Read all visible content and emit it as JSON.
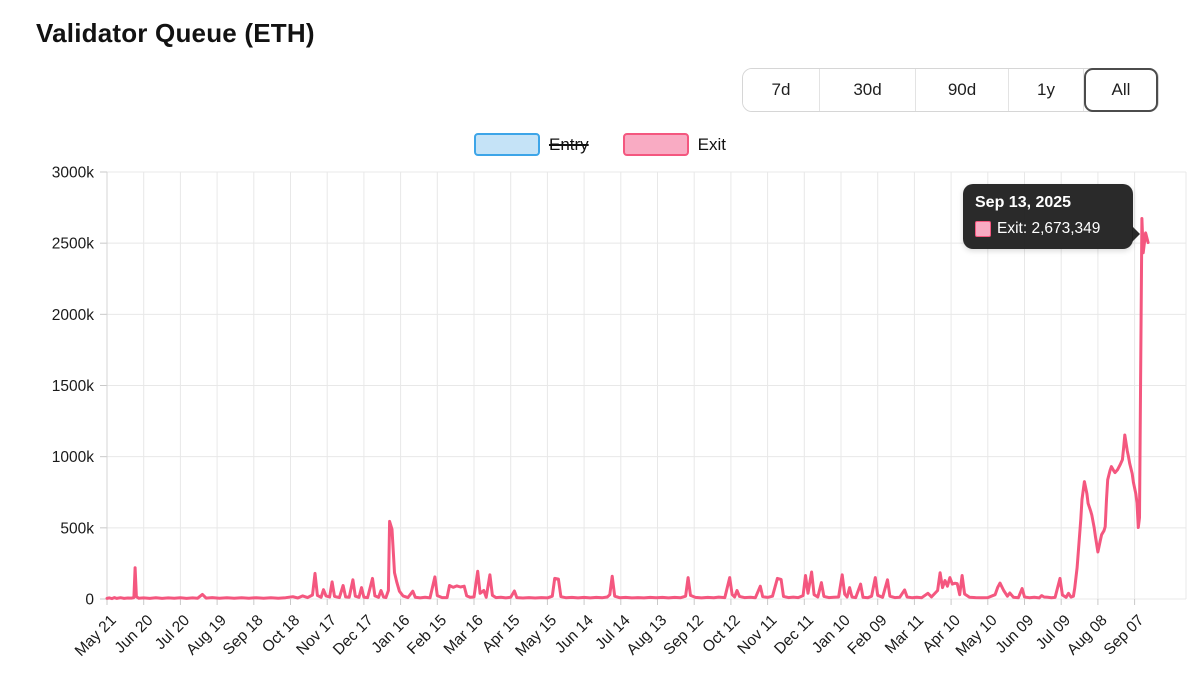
{
  "page": {
    "title": "Validator Queue (ETH)"
  },
  "range_buttons": [
    {
      "label": "7d",
      "active": false
    },
    {
      "label": "30d",
      "active": false
    },
    {
      "label": "90d",
      "active": false
    },
    {
      "label": "1y",
      "active": false
    },
    {
      "label": "All",
      "active": true
    }
  ],
  "legend": {
    "items": [
      {
        "label": "Entry",
        "border": "#3da5e8",
        "fill": "#c5e3f7",
        "disabled": true
      },
      {
        "label": "Exit",
        "border": "#f4577f",
        "fill": "#f9abc3",
        "disabled": false
      }
    ]
  },
  "tooltip": {
    "date": "Sep 13, 2025",
    "text": "Exit: 2,673,349",
    "swatch_fill": "#f9abc3",
    "swatch_border": "#f4577f"
  },
  "colors": {
    "exit_line": "#f4577f",
    "entry_line": "#3da5e8",
    "grid": "#e8e8e8",
    "axis": "#d4d4d4",
    "tick": "#c9c9c9",
    "label": "#1a1a1a"
  },
  "chart_data": {
    "type": "line",
    "title": "Validator Queue (ETH)",
    "xlabel": "",
    "ylabel": "",
    "y_unit": "k",
    "ylim": [
      0,
      3000
    ],
    "xlim_days": [
      0,
      882
    ],
    "grid": true,
    "legend_position": "top-center",
    "y_ticks": [
      {
        "v": 0,
        "label": "0"
      },
      {
        "v": 500,
        "label": "500k"
      },
      {
        "v": 1000,
        "label": "1000k"
      },
      {
        "v": 1500,
        "label": "1500k"
      },
      {
        "v": 2000,
        "label": "2000k"
      },
      {
        "v": 2500,
        "label": "2500k"
      },
      {
        "v": 3000,
        "label": "3000k"
      }
    ],
    "x_ticks": [
      {
        "day": 0,
        "label": "May 21"
      },
      {
        "day": 30,
        "label": "Jun 20"
      },
      {
        "day": 60,
        "label": "Jul 20"
      },
      {
        "day": 90,
        "label": "Aug 19"
      },
      {
        "day": 120,
        "label": "Sep 18"
      },
      {
        "day": 150,
        "label": "Oct 18"
      },
      {
        "day": 180,
        "label": "Nov 17"
      },
      {
        "day": 210,
        "label": "Dec 17"
      },
      {
        "day": 240,
        "label": "Jan 16"
      },
      {
        "day": 270,
        "label": "Feb 15"
      },
      {
        "day": 300,
        "label": "Mar 16"
      },
      {
        "day": 330,
        "label": "Apr 15"
      },
      {
        "day": 360,
        "label": "May 15"
      },
      {
        "day": 390,
        "label": "Jun 14"
      },
      {
        "day": 420,
        "label": "Jul 14"
      },
      {
        "day": 450,
        "label": "Aug 13"
      },
      {
        "day": 480,
        "label": "Sep 12"
      },
      {
        "day": 510,
        "label": "Oct 12"
      },
      {
        "day": 540,
        "label": "Nov 11"
      },
      {
        "day": 570,
        "label": "Dec 11"
      },
      {
        "day": 600,
        "label": "Jan 10"
      },
      {
        "day": 630,
        "label": "Feb 09"
      },
      {
        "day": 660,
        "label": "Mar 11"
      },
      {
        "day": 690,
        "label": "Apr 10"
      },
      {
        "day": 720,
        "label": "May 10"
      },
      {
        "day": 750,
        "label": "Jun 09"
      },
      {
        "day": 780,
        "label": "Jul 09"
      },
      {
        "day": 810,
        "label": "Aug 08"
      },
      {
        "day": 840,
        "label": "Sep 07"
      }
    ],
    "highlight_point": {
      "day": 846,
      "value_k": 2673.349,
      "label": "Sep 13, 2025",
      "series": "Exit"
    },
    "series": [
      {
        "name": "Entry",
        "color": "#3da5e8",
        "hidden": true,
        "points": []
      },
      {
        "name": "Exit",
        "color": "#f4577f",
        "hidden": false,
        "points": [
          [
            0,
            4
          ],
          [
            2,
            8
          ],
          [
            4,
            3
          ],
          [
            6,
            10
          ],
          [
            8,
            4
          ],
          [
            11,
            9
          ],
          [
            14,
            4
          ],
          [
            17,
            7
          ],
          [
            20,
            6
          ],
          [
            22,
            10
          ],
          [
            23,
            220
          ],
          [
            24,
            16
          ],
          [
            26,
            5
          ],
          [
            30,
            8
          ],
          [
            35,
            4
          ],
          [
            40,
            9
          ],
          [
            45,
            4
          ],
          [
            50,
            8
          ],
          [
            55,
            5
          ],
          [
            60,
            9
          ],
          [
            65,
            4
          ],
          [
            70,
            8
          ],
          [
            74,
            5
          ],
          [
            78,
            32
          ],
          [
            81,
            6
          ],
          [
            86,
            10
          ],
          [
            92,
            5
          ],
          [
            98,
            9
          ],
          [
            104,
            5
          ],
          [
            110,
            9
          ],
          [
            116,
            5
          ],
          [
            122,
            9
          ],
          [
            128,
            5
          ],
          [
            134,
            9
          ],
          [
            140,
            5
          ],
          [
            146,
            9
          ],
          [
            152,
            16
          ],
          [
            156,
            7
          ],
          [
            160,
            22
          ],
          [
            164,
            10
          ],
          [
            168,
            28
          ],
          [
            170,
            180
          ],
          [
            172,
            25
          ],
          [
            175,
            12
          ],
          [
            177,
            65
          ],
          [
            179,
            22
          ],
          [
            182,
            14
          ],
          [
            184,
            120
          ],
          [
            186,
            18
          ],
          [
            190,
            10
          ],
          [
            193,
            95
          ],
          [
            195,
            15
          ],
          [
            198,
            12
          ],
          [
            201,
            135
          ],
          [
            203,
            20
          ],
          [
            206,
            12
          ],
          [
            208,
            80
          ],
          [
            210,
            12
          ],
          [
            213,
            10
          ],
          [
            217,
            145
          ],
          [
            219,
            22
          ],
          [
            222,
            12
          ],
          [
            224,
            60
          ],
          [
            226,
            14
          ],
          [
            228,
            10
          ],
          [
            230,
            60
          ],
          [
            231,
            545
          ],
          [
            233,
            490
          ],
          [
            235,
            185
          ],
          [
            237,
            115
          ],
          [
            239,
            55
          ],
          [
            242,
            22
          ],
          [
            246,
            10
          ],
          [
            250,
            55
          ],
          [
            252,
            12
          ],
          [
            256,
            8
          ],
          [
            260,
            12
          ],
          [
            264,
            8
          ],
          [
            268,
            155
          ],
          [
            270,
            24
          ],
          [
            274,
            10
          ],
          [
            278,
            10
          ],
          [
            280,
            95
          ],
          [
            283,
            82
          ],
          [
            286,
            92
          ],
          [
            289,
            84
          ],
          [
            292,
            90
          ],
          [
            294,
            22
          ],
          [
            297,
            12
          ],
          [
            300,
            14
          ],
          [
            303,
            195
          ],
          [
            305,
            40
          ],
          [
            308,
            60
          ],
          [
            310,
            12
          ],
          [
            313,
            170
          ],
          [
            315,
            26
          ],
          [
            318,
            10
          ],
          [
            322,
            12
          ],
          [
            326,
            8
          ],
          [
            330,
            12
          ],
          [
            333,
            56
          ],
          [
            335,
            10
          ],
          [
            340,
            7
          ],
          [
            345,
            10
          ],
          [
            350,
            7
          ],
          [
            355,
            10
          ],
          [
            360,
            8
          ],
          [
            364,
            20
          ],
          [
            366,
            145
          ],
          [
            369,
            140
          ],
          [
            371,
            16
          ],
          [
            375,
            9
          ],
          [
            380,
            11
          ],
          [
            385,
            8
          ],
          [
            390,
            11
          ],
          [
            395,
            8
          ],
          [
            400,
            11
          ],
          [
            405,
            9
          ],
          [
            409,
            14
          ],
          [
            411,
            30
          ],
          [
            413,
            160
          ],
          [
            415,
            20
          ],
          [
            419,
            9
          ],
          [
            424,
            11
          ],
          [
            429,
            8
          ],
          [
            434,
            10
          ],
          [
            439,
            8
          ],
          [
            444,
            11
          ],
          [
            449,
            9
          ],
          [
            454,
            11
          ],
          [
            459,
            8
          ],
          [
            464,
            11
          ],
          [
            469,
            9
          ],
          [
            473,
            20
          ],
          [
            475,
            150
          ],
          [
            477,
            25
          ],
          [
            481,
            11
          ],
          [
            486,
            8
          ],
          [
            491,
            11
          ],
          [
            496,
            9
          ],
          [
            500,
            13
          ],
          [
            505,
            10
          ],
          [
            509,
            150
          ],
          [
            511,
            32
          ],
          [
            513,
            14
          ],
          [
            515,
            60
          ],
          [
            517,
            18
          ],
          [
            521,
            10
          ],
          [
            526,
            12
          ],
          [
            530,
            9
          ],
          [
            534,
            90
          ],
          [
            536,
            16
          ],
          [
            540,
            11
          ],
          [
            544,
            20
          ],
          [
            548,
            145
          ],
          [
            551,
            138
          ],
          [
            553,
            18
          ],
          [
            557,
            10
          ],
          [
            561,
            13
          ],
          [
            565,
            10
          ],
          [
            569,
            24
          ],
          [
            571,
            165
          ],
          [
            573,
            40
          ],
          [
            576,
            190
          ],
          [
            578,
            30
          ],
          [
            581,
            14
          ],
          [
            584,
            115
          ],
          [
            586,
            18
          ],
          [
            590,
            10
          ],
          [
            594,
            12
          ],
          [
            598,
            14
          ],
          [
            601,
            170
          ],
          [
            603,
            34
          ],
          [
            605,
            14
          ],
          [
            607,
            80
          ],
          [
            609,
            14
          ],
          [
            612,
            10
          ],
          [
            616,
            105
          ],
          [
            618,
            12
          ],
          [
            622,
            9
          ],
          [
            625,
            20
          ],
          [
            628,
            150
          ],
          [
            630,
            26
          ],
          [
            634,
            12
          ],
          [
            638,
            135
          ],
          [
            640,
            20
          ],
          [
            644,
            10
          ],
          [
            648,
            12
          ],
          [
            652,
            64
          ],
          [
            654,
            14
          ],
          [
            658,
            9
          ],
          [
            662,
            12
          ],
          [
            666,
            9
          ],
          [
            671,
            40
          ],
          [
            674,
            15
          ],
          [
            679,
            60
          ],
          [
            681,
            185
          ],
          [
            683,
            80
          ],
          [
            685,
            130
          ],
          [
            687,
            90
          ],
          [
            689,
            150
          ],
          [
            691,
            105
          ],
          [
            693,
            110
          ],
          [
            695,
            108
          ],
          [
            697,
            30
          ],
          [
            699,
            165
          ],
          [
            701,
            35
          ],
          [
            705,
            12
          ],
          [
            710,
            10
          ],
          [
            715,
            9
          ],
          [
            720,
            10
          ],
          [
            726,
            30
          ],
          [
            728,
            80
          ],
          [
            730,
            112
          ],
          [
            733,
            60
          ],
          [
            736,
            20
          ],
          [
            738,
            42
          ],
          [
            741,
            12
          ],
          [
            745,
            9
          ],
          [
            748,
            74
          ],
          [
            750,
            14
          ],
          [
            754,
            9
          ],
          [
            758,
            12
          ],
          [
            762,
            8
          ],
          [
            764,
            24
          ],
          [
            766,
            14
          ],
          [
            769,
            12
          ],
          [
            772,
            9
          ],
          [
            775,
            11
          ],
          [
            779,
            145
          ],
          [
            781,
            28
          ],
          [
            784,
            12
          ],
          [
            786,
            40
          ],
          [
            788,
            13
          ],
          [
            790,
            20
          ],
          [
            791,
            75
          ],
          [
            793,
            220
          ],
          [
            794,
            330
          ],
          [
            796,
            560
          ],
          [
            797,
            700
          ],
          [
            799,
            825
          ],
          [
            801,
            740
          ],
          [
            802,
            672
          ],
          [
            804,
            620
          ],
          [
            805,
            590
          ],
          [
            807,
            500
          ],
          [
            808,
            435
          ],
          [
            810,
            330
          ],
          [
            812,
            410
          ],
          [
            813,
            452
          ],
          [
            815,
            480
          ],
          [
            816,
            508
          ],
          [
            817,
            700
          ],
          [
            818,
            838
          ],
          [
            820,
            905
          ],
          [
            821,
            930
          ],
          [
            823,
            900
          ],
          [
            824,
            888
          ],
          [
            826,
            908
          ],
          [
            828,
            940
          ],
          [
            830,
            978
          ],
          [
            831,
            1060
          ],
          [
            832,
            1152
          ],
          [
            834,
            1040
          ],
          [
            835,
            1000
          ],
          [
            836,
            952
          ],
          [
            838,
            880
          ],
          [
            839,
            820
          ],
          [
            841,
            740
          ],
          [
            842,
            676
          ],
          [
            843,
            502
          ],
          [
            844,
            572
          ],
          [
            846,
            2673.349
          ],
          [
            847,
            2432
          ],
          [
            849,
            2572
          ],
          [
            851,
            2504
          ]
        ]
      }
    ]
  }
}
